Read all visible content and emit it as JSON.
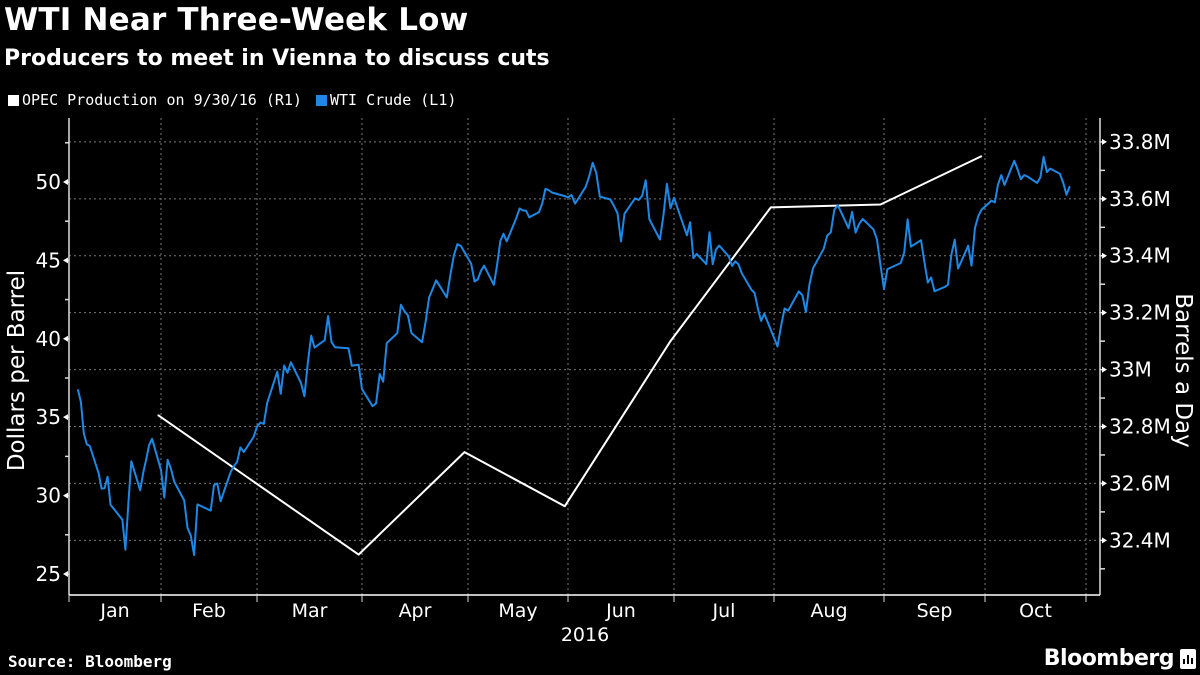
{
  "title": "WTI Near Three-Week Low",
  "subtitle": "Producers to meet in Vienna to discuss cuts",
  "source": "Source: Bloomberg",
  "logo_text": "Bloomberg",
  "chart_data": {
    "type": "line",
    "legend_position": "top-left",
    "grid": true,
    "xlabel": "2016",
    "x_ticks": [
      "Jan",
      "Feb",
      "Mar",
      "Apr",
      "May",
      "Jun",
      "Jul",
      "Aug",
      "Sep",
      "Oct"
    ],
    "y_left": {
      "label": "Dollars per Barrel",
      "ticks": [
        "25",
        "30",
        "35",
        "40",
        "45",
        "50"
      ],
      "tick_values": [
        25,
        30,
        35,
        40,
        45,
        50
      ],
      "range": [
        23.66,
        54.08
      ]
    },
    "y_right": {
      "label": "Barrels a Day",
      "ticks": [
        "32.4M",
        "32.6M",
        "32.8M",
        "33M",
        "33.2M",
        "33.4M",
        "33.6M",
        "33.8M"
      ],
      "tick_values": [
        32.4,
        32.6,
        32.8,
        33.0,
        33.2,
        33.4,
        33.6,
        33.8
      ],
      "range": [
        32.208,
        33.884
      ],
      "unit": "million barrels/day"
    },
    "series": [
      {
        "name": "OPEC Production on 9/30/16 (R1)",
        "axis": "right",
        "color": "#ffffff",
        "x": [
          "2016-01-31",
          "2016-03-31",
          "2016-04-30",
          "2016-05-31",
          "2016-06-30",
          "2016-07-31",
          "2016-08-31",
          "2016-09-30"
        ],
        "values": [
          32.84,
          32.35,
          32.71,
          32.52,
          33.1,
          33.57,
          33.58,
          33.75
        ]
      },
      {
        "name": "WTI Crude (L1)",
        "axis": "left",
        "color": "#1e88e5",
        "x": [
          "2016-01-04",
          "2016-01-05",
          "2016-01-06",
          "2016-01-07",
          "2016-01-08",
          "2016-01-11",
          "2016-01-12",
          "2016-01-13",
          "2016-01-14",
          "2016-01-15",
          "2016-01-19",
          "2016-01-20",
          "2016-01-21",
          "2016-01-22",
          "2016-01-25",
          "2016-01-26",
          "2016-01-27",
          "2016-01-28",
          "2016-01-29",
          "2016-02-01",
          "2016-02-02",
          "2016-02-03",
          "2016-02-04",
          "2016-02-05",
          "2016-02-08",
          "2016-02-09",
          "2016-02-10",
          "2016-02-11",
          "2016-02-12",
          "2016-02-16",
          "2016-02-17",
          "2016-02-18",
          "2016-02-19",
          "2016-02-22",
          "2016-02-23",
          "2016-02-24",
          "2016-02-25",
          "2016-02-26",
          "2016-02-29",
          "2016-03-01",
          "2016-03-02",
          "2016-03-03",
          "2016-03-04",
          "2016-03-07",
          "2016-03-08",
          "2016-03-09",
          "2016-03-10",
          "2016-03-11",
          "2016-03-14",
          "2016-03-15",
          "2016-03-16",
          "2016-03-17",
          "2016-03-18",
          "2016-03-21",
          "2016-03-22",
          "2016-03-23",
          "2016-03-24",
          "2016-03-28",
          "2016-03-29",
          "2016-03-30",
          "2016-03-31",
          "2016-04-01",
          "2016-04-04",
          "2016-04-05",
          "2016-04-06",
          "2016-04-07",
          "2016-04-08",
          "2016-04-11",
          "2016-04-12",
          "2016-04-13",
          "2016-04-14",
          "2016-04-15",
          "2016-04-18",
          "2016-04-19",
          "2016-04-20",
          "2016-04-21",
          "2016-04-22",
          "2016-04-25",
          "2016-04-26",
          "2016-04-27",
          "2016-04-28",
          "2016-04-29",
          "2016-05-02",
          "2016-05-03",
          "2016-05-04",
          "2016-05-05",
          "2016-05-06",
          "2016-05-09",
          "2016-05-10",
          "2016-05-11",
          "2016-05-12",
          "2016-05-13",
          "2016-05-16",
          "2016-05-17",
          "2016-05-18",
          "2016-05-19",
          "2016-05-20",
          "2016-05-23",
          "2016-05-24",
          "2016-05-25",
          "2016-05-26",
          "2016-05-27",
          "2016-05-31",
          "2016-06-01",
          "2016-06-02",
          "2016-06-03",
          "2016-06-06",
          "2016-06-07",
          "2016-06-08",
          "2016-06-09",
          "2016-06-10",
          "2016-06-13",
          "2016-06-14",
          "2016-06-15",
          "2016-06-16",
          "2016-06-17",
          "2016-06-20",
          "2016-06-21",
          "2016-06-22",
          "2016-06-23",
          "2016-06-24",
          "2016-06-27",
          "2016-06-28",
          "2016-06-29",
          "2016-06-30",
          "2016-07-01",
          "2016-07-05",
          "2016-07-06",
          "2016-07-07",
          "2016-07-08",
          "2016-07-11",
          "2016-07-12",
          "2016-07-13",
          "2016-07-14",
          "2016-07-15",
          "2016-07-18",
          "2016-07-19",
          "2016-07-20",
          "2016-07-21",
          "2016-07-22",
          "2016-07-25",
          "2016-07-26",
          "2016-07-27",
          "2016-07-28",
          "2016-07-29",
          "2016-08-01",
          "2016-08-02",
          "2016-08-03",
          "2016-08-04",
          "2016-08-05",
          "2016-08-08",
          "2016-08-09",
          "2016-08-10",
          "2016-08-11",
          "2016-08-12",
          "2016-08-15",
          "2016-08-16",
          "2016-08-17",
          "2016-08-18",
          "2016-08-19",
          "2016-08-22",
          "2016-08-23",
          "2016-08-24",
          "2016-08-25",
          "2016-08-26",
          "2016-08-29",
          "2016-08-30",
          "2016-08-31",
          "2016-09-01",
          "2016-09-02",
          "2016-09-06",
          "2016-09-07",
          "2016-09-08",
          "2016-09-09",
          "2016-09-12",
          "2016-09-13",
          "2016-09-14",
          "2016-09-15",
          "2016-09-16",
          "2016-09-19",
          "2016-09-20",
          "2016-09-21",
          "2016-09-22",
          "2016-09-23",
          "2016-09-26",
          "2016-09-27",
          "2016-09-28",
          "2016-09-29",
          "2016-09-30",
          "2016-10-03",
          "2016-10-04",
          "2016-10-05",
          "2016-10-06",
          "2016-10-07",
          "2016-10-10",
          "2016-10-11",
          "2016-10-12",
          "2016-10-13",
          "2016-10-14",
          "2016-10-17",
          "2016-10-18",
          "2016-10-19",
          "2016-10-20",
          "2016-10-21",
          "2016-10-24",
          "2016-10-25",
          "2016-10-26",
          "2016-10-27"
        ],
        "values": [
          36.76,
          35.97,
          33.97,
          33.27,
          33.16,
          31.41,
          30.44,
          30.48,
          31.2,
          29.42,
          28.46,
          26.55,
          29.53,
          32.19,
          30.34,
          31.45,
          32.3,
          33.22,
          33.62,
          31.62,
          29.88,
          32.28,
          31.72,
          30.89,
          29.69,
          27.94,
          27.45,
          26.21,
          29.44,
          29.04,
          30.66,
          30.77,
          29.64,
          31.48,
          31.87,
          32.15,
          33.07,
          32.78,
          33.75,
          34.4,
          34.66,
          34.57,
          35.92,
          37.9,
          36.5,
          38.29,
          37.84,
          38.5,
          37.18,
          36.34,
          38.46,
          40.2,
          39.44,
          39.91,
          41.45,
          39.79,
          39.46,
          39.39,
          38.28,
          38.32,
          38.34,
          36.79,
          35.7,
          35.89,
          37.75,
          37.26,
          39.72,
          40.36,
          42.17,
          41.76,
          41.5,
          40.36,
          39.78,
          41.08,
          42.63,
          43.18,
          43.73,
          42.64,
          44.04,
          45.33,
          46.03,
          45.92,
          44.78,
          43.65,
          43.78,
          44.32,
          44.66,
          43.44,
          44.66,
          46.23,
          46.7,
          46.21,
          47.72,
          48.31,
          48.19,
          48.16,
          47.75,
          48.08,
          48.62,
          49.56,
          49.48,
          49.33,
          49.1,
          49.01,
          49.17,
          48.62,
          49.69,
          50.36,
          51.23,
          50.56,
          49.07,
          48.88,
          48.49,
          48.01,
          46.21,
          47.98,
          48.96,
          48.85,
          49.13,
          50.11,
          47.64,
          46.33,
          47.85,
          49.88,
          48.33,
          48.99,
          46.6,
          47.43,
          45.14,
          45.41,
          44.76,
          46.8,
          44.75,
          45.68,
          45.95,
          45.24,
          44.65,
          44.94,
          44.75,
          44.19,
          43.13,
          42.92,
          41.92,
          41.14,
          41.6,
          40.06,
          39.51,
          40.83,
          41.93,
          41.8,
          43.02,
          42.77,
          41.71,
          43.49,
          44.49,
          45.74,
          46.58,
          46.79,
          48.22,
          48.52,
          47.05,
          48.1,
          46.77,
          47.33,
          47.64,
          46.98,
          46.35,
          44.7,
          43.16,
          44.44,
          44.83,
          45.5,
          47.62,
          45.88,
          46.29,
          44.9,
          43.58,
          43.91,
          43.03,
          43.3,
          43.44,
          45.34,
          46.32,
          44.48,
          45.93,
          44.67,
          47.05,
          47.83,
          48.24,
          48.81,
          48.69,
          49.83,
          50.44,
          49.81,
          51.35,
          50.79,
          50.18,
          50.44,
          50.35,
          49.94,
          50.29,
          51.6,
          50.63,
          50.85,
          50.52,
          49.96,
          49.18,
          49.72
        ]
      }
    ]
  }
}
